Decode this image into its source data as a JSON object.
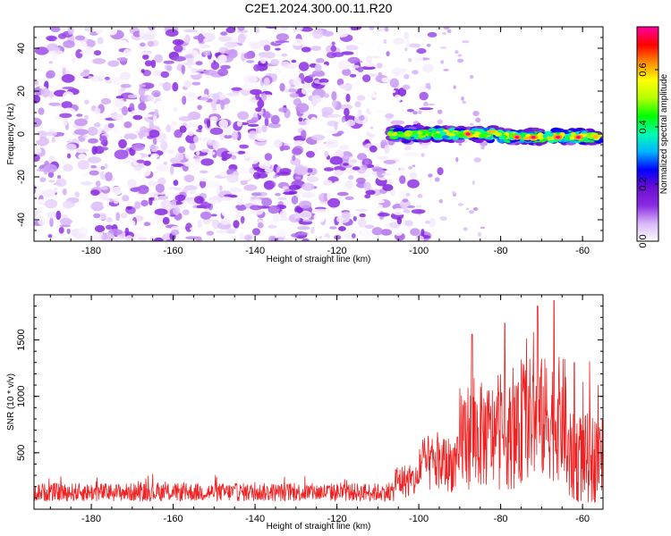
{
  "title": "C2E1.2024.300.00.11.R20",
  "chart_data": [
    {
      "type": "heatmap",
      "xlabel": "Height of straight line (km)",
      "ylabel": "Frequency (Hz)",
      "xlim": [
        -194,
        -55
      ],
      "ylim": [
        -50,
        50
      ],
      "xticks": [
        -180,
        -160,
        -140,
        -120,
        -100,
        -80,
        -60
      ],
      "yticks": [
        -40,
        -20,
        0,
        20,
        40
      ],
      "colorbar": {
        "label": "Normalized spectral amplitude",
        "range": [
          0,
          0.75
        ],
        "ticks": [
          "0.0",
          "0.2",
          "0.4",
          "0.6"
        ],
        "tick_values": [
          0,
          0.2,
          0.4,
          0.6
        ],
        "colors": [
          "#ffffff",
          "#d8b6f8",
          "#8a2be2",
          "#6a0dd0",
          "#0000ff",
          "#00b4ff",
          "#00ffb0",
          "#00ff00",
          "#b4ff00",
          "#ffff00",
          "#ff8c00",
          "#ff0000",
          "#ff00a0"
        ]
      },
      "noise_region": {
        "x": [
          -194,
          -105
        ],
        "freq": [
          -50,
          50
        ],
        "amplitude": [
          0.0,
          0.15
        ]
      },
      "signal_band": {
        "x": [
          -107,
          -56
        ],
        "center_freq": 0,
        "half_width_hz": 3,
        "amplitude": [
          0.1,
          0.75
        ],
        "peak_x": [
          -88,
          -76,
          -72,
          -66,
          -61
        ]
      }
    },
    {
      "type": "line",
      "xlabel": "Height of straight line (km)",
      "ylabel": "SNR (10 * v/v)",
      "xlim": [
        -194,
        -55
      ],
      "ylim": [
        0,
        1900
      ],
      "xticks": [
        -180,
        -160,
        -140,
        -120,
        -100,
        -80,
        -60
      ],
      "yticks": [
        500,
        1000,
        1500
      ],
      "series_color": "#ee2222",
      "segments": [
        {
          "x": [
            -194,
            -106
          ],
          "mean": 150,
          "spread": 160
        },
        {
          "x": [
            -106,
            -100
          ],
          "mean": 250,
          "spread": 300
        },
        {
          "x": [
            -100,
            -90
          ],
          "mean": 400,
          "spread": 500
        },
        {
          "x": [
            -90,
            -75
          ],
          "mean": 650,
          "spread": 950
        },
        {
          "x": [
            -75,
            -64
          ],
          "mean": 800,
          "spread": 1100
        },
        {
          "x": [
            -64,
            -55
          ],
          "mean": 450,
          "spread": 800
        }
      ],
      "peaks": [
        {
          "x": -87,
          "y": 1550
        },
        {
          "x": -79,
          "y": 1650
        },
        {
          "x": -71,
          "y": 1800
        },
        {
          "x": -67,
          "y": 1850
        },
        {
          "x": -62,
          "y": 1300
        }
      ]
    }
  ]
}
